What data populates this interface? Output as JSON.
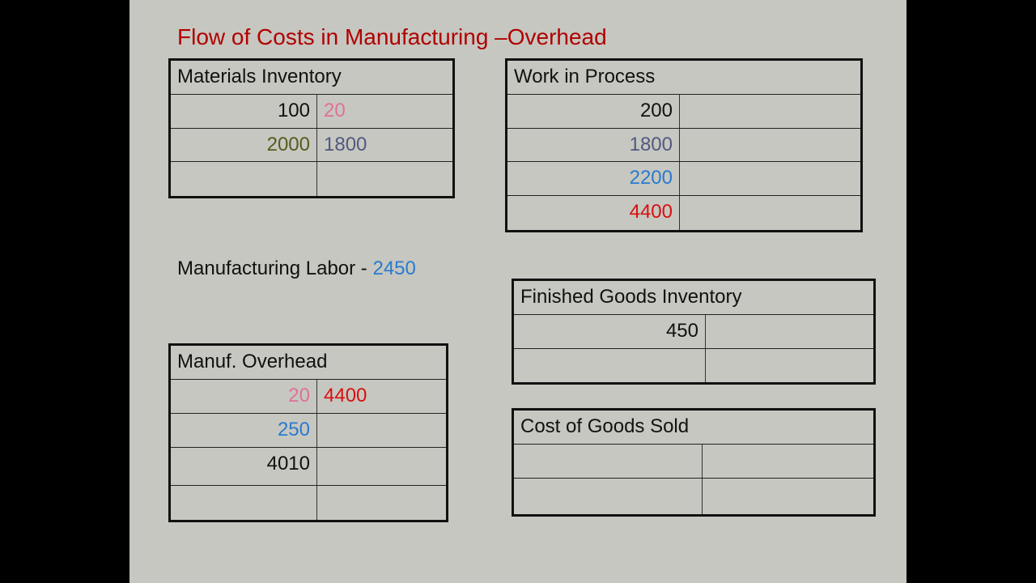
{
  "title": "Flow of Costs in Manufacturing –Overhead",
  "labor": {
    "label": "Manufacturing Labor - ",
    "value": "2450",
    "value_color": "#2a7ad0"
  },
  "colors": {
    "title": "#b00000",
    "black": "#111111",
    "pink": "#e0709a",
    "olive": "#5a5a20",
    "slate": "#505a80",
    "blue": "#2a7ad0",
    "red": "#d81010"
  },
  "accounts": [
    {
      "id": "materials-inventory",
      "name": "Materials Inventory",
      "rows": [
        {
          "debit": "100",
          "debit_color": "#111111",
          "credit": "20",
          "credit_color": "#e0709a"
        },
        {
          "debit": "2000",
          "debit_color": "#5a5a20",
          "credit": "1800",
          "credit_color": "#505a80"
        },
        {
          "debit": "",
          "credit": ""
        }
      ]
    },
    {
      "id": "work-in-process",
      "name": "Work in Process",
      "rows": [
        {
          "debit": "200",
          "debit_color": "#111111",
          "credit": ""
        },
        {
          "debit": "1800",
          "debit_color": "#505a80",
          "credit": ""
        },
        {
          "debit": "2200",
          "debit_color": "#2a7ad0",
          "credit": ""
        },
        {
          "debit": "4400",
          "debit_color": "#d81010",
          "credit": ""
        }
      ]
    },
    {
      "id": "finished-goods-inventory",
      "name": "Finished Goods Inventory",
      "rows": [
        {
          "debit": "450",
          "debit_color": "#111111",
          "credit": ""
        },
        {
          "debit": "",
          "credit": ""
        }
      ]
    },
    {
      "id": "manufacturing-overhead",
      "name": "Manuf. Overhead",
      "rows": [
        {
          "debit": "20",
          "debit_color": "#e0709a",
          "credit": "4400",
          "credit_color": "#d81010"
        },
        {
          "debit": "250",
          "debit_color": "#2a7ad0",
          "credit": ""
        },
        {
          "debit": "4010",
          "debit_color": "#111111",
          "credit": ""
        },
        {
          "debit": "",
          "credit": ""
        }
      ]
    },
    {
      "id": "cost-of-goods-sold",
      "name": "Cost of Goods Sold",
      "rows": [
        {
          "debit": "",
          "credit": ""
        },
        {
          "debit": "",
          "credit": ""
        }
      ]
    }
  ]
}
